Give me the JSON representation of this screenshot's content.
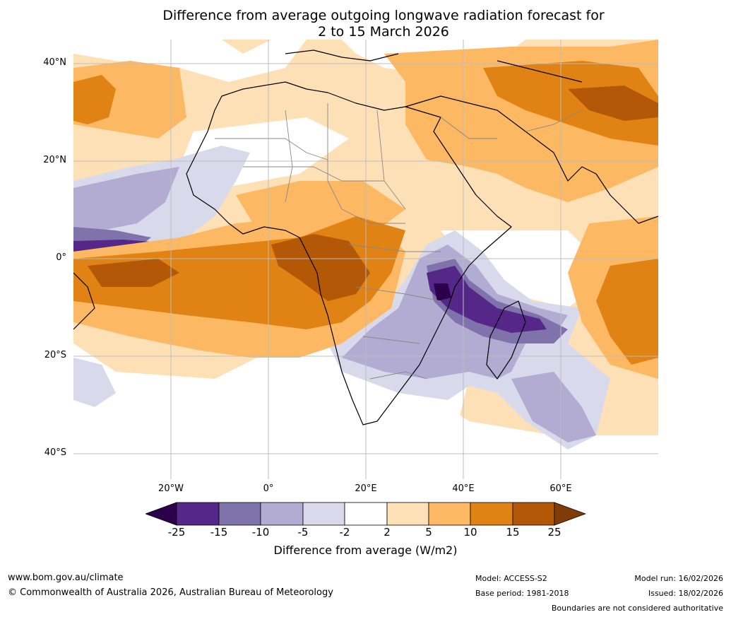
{
  "title": {
    "line1": "Difference from average outgoing longwave radiation forecast for",
    "line2": "2 to 15 March 2026"
  },
  "map": {
    "lat_labels": [
      "40°N",
      "20°N",
      "0°",
      "20°S",
      "40°S"
    ],
    "lon_labels": [
      "20°W",
      "0°",
      "20°E",
      "40°E",
      "60°E"
    ],
    "extent": {
      "lon": [
        -40,
        80
      ],
      "lat": [
        -45,
        45
      ]
    }
  },
  "colorbar": {
    "ticks": [
      "-25",
      "-15",
      "-10",
      "-5",
      "-2",
      "2",
      "5",
      "10",
      "15",
      "25"
    ],
    "colors": {
      "below_min": "#2d004b",
      "neg_25_15": "#542788",
      "neg_15_10": "#8073ac",
      "neg_10_5": "#b2abd2",
      "neg_5_2": "#d8daeb",
      "neutral": "#ffffff",
      "pos_2_5": "#fee0b6",
      "pos_5_10": "#fdb863",
      "pos_10_15": "#e08214",
      "pos_15_25": "#b35806",
      "above_max": "#7f3b08"
    },
    "label": "Difference from average (W/m2)"
  },
  "footer": {
    "url": "www.bom.gov.au/climate",
    "copyright": "© Commonwealth of Australia 2026, Australian Bureau of Meteorology",
    "model": "Model: ACCESS-S2",
    "base_period": "Base period: 1981-2018",
    "model_run": "Model run: 16/02/2026",
    "issued": "Issued: 18/02/2026",
    "disclaimer": "Boundaries are not considered authoritative"
  }
}
